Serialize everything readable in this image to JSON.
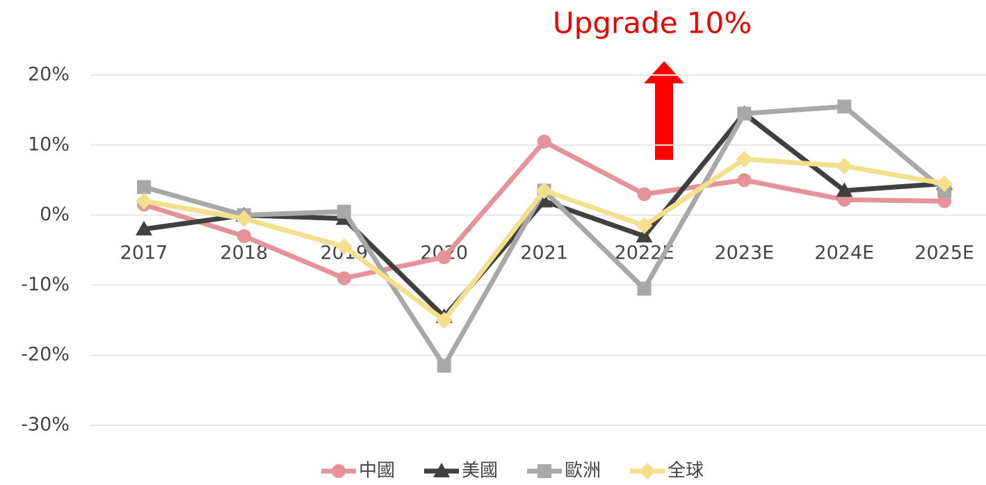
{
  "chart_data": {
    "type": "line",
    "annotation": "Upgrade 10%",
    "categories": [
      "2017",
      "2018",
      "2019",
      "2020",
      "2021",
      "2022E",
      "2023E",
      "2024E",
      "2025E"
    ],
    "series": [
      {
        "name": "中國",
        "color": "#e4939a",
        "marker": "circle",
        "values": [
          1.5,
          -3,
          -9,
          -6,
          10.5,
          3,
          5,
          2.2,
          2
        ]
      },
      {
        "name": "美國",
        "color": "#404040",
        "marker": "triangle",
        "values": [
          -2,
          0,
          -0.5,
          -14.5,
          2,
          -3,
          14.5,
          3.5,
          4.5
        ]
      },
      {
        "name": "歐洲",
        "color": "#a8a8a8",
        "marker": "square",
        "values": [
          4,
          0,
          0.5,
          -21.5,
          3.5,
          -10.5,
          14.5,
          15.5,
          3.5
        ]
      },
      {
        "name": "全球",
        "color": "#f4df8c",
        "marker": "diamond",
        "values": [
          2,
          -0.5,
          -4.5,
          -15,
          3.5,
          -1.5,
          8,
          7,
          4.5
        ]
      }
    ],
    "ylim": [
      -30,
      20
    ],
    "yticks": [
      {
        "value": -30,
        "label": "-30%"
      },
      {
        "value": -20,
        "label": "-20%"
      },
      {
        "value": -10,
        "label": "-10%"
      },
      {
        "value": 0,
        "label": "0%"
      },
      {
        "value": 10,
        "label": "10%"
      },
      {
        "value": 20,
        "label": "20%"
      }
    ],
    "grid": true
  }
}
